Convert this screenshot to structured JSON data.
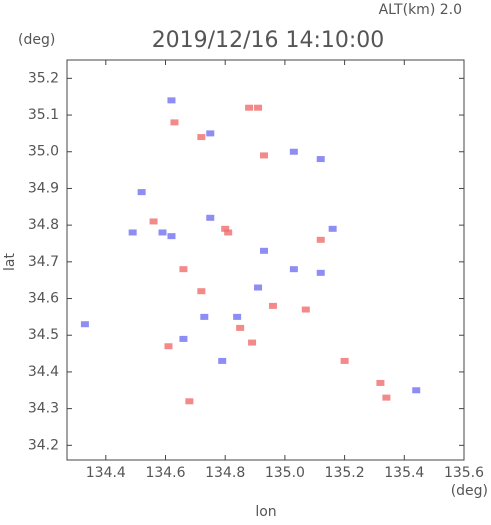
{
  "chart_data": {
    "type": "scatter",
    "title": "2019/12/16 14:10:00",
    "subtitle": "ALT(km) 2.0",
    "x_label": "lon",
    "x_unit": "(deg)",
    "y_label": "lat",
    "y_unit": "(deg)",
    "xlim": [
      134.27,
      135.6
    ],
    "ylim": [
      34.16,
      35.25
    ],
    "xticks": [
      134.4,
      134.6,
      134.8,
      {
        "value": 135,
        "label": "135.0"
      },
      135.2,
      135.4,
      135.6
    ],
    "yticks": [
      34.2,
      34.3,
      34.4,
      34.5,
      34.6,
      34.7,
      34.8,
      34.9,
      {
        "value": 35,
        "label": "35.0"
      },
      35.1,
      35.2
    ],
    "series": [
      {
        "color": "#f06d6d",
        "x": [
          134.88,
          134.91,
          134.63,
          134.72,
          134.93,
          134.56,
          134.8,
          134.72,
          134.85,
          134.96,
          135.07,
          135.2,
          135.32,
          135.34,
          134.68,
          134.61,
          135.12,
          134.89,
          134.81,
          134.66
        ],
        "values": [
          35.12,
          35.12,
          35.08,
          35.04,
          34.99,
          34.81,
          34.79,
          34.62,
          34.52,
          34.58,
          34.57,
          34.43,
          34.37,
          34.33,
          34.32,
          34.47,
          34.76,
          34.48,
          34.78,
          34.68
        ]
      },
      {
        "color": "#7070f0",
        "x": [
          134.62,
          134.75,
          134.52,
          134.49,
          134.62,
          134.75,
          134.93,
          135.03,
          134.73,
          134.79,
          134.66,
          134.33,
          135.12,
          135.16,
          135.44,
          135.12,
          134.84,
          135.03,
          134.59,
          134.91
        ],
        "values": [
          35.14,
          35.05,
          34.89,
          34.78,
          34.77,
          34.82,
          34.73,
          34.68,
          34.55,
          34.43,
          34.49,
          34.53,
          34.98,
          34.79,
          34.35,
          34.67,
          34.55,
          35.0,
          34.78,
          34.63
        ]
      }
    ]
  }
}
